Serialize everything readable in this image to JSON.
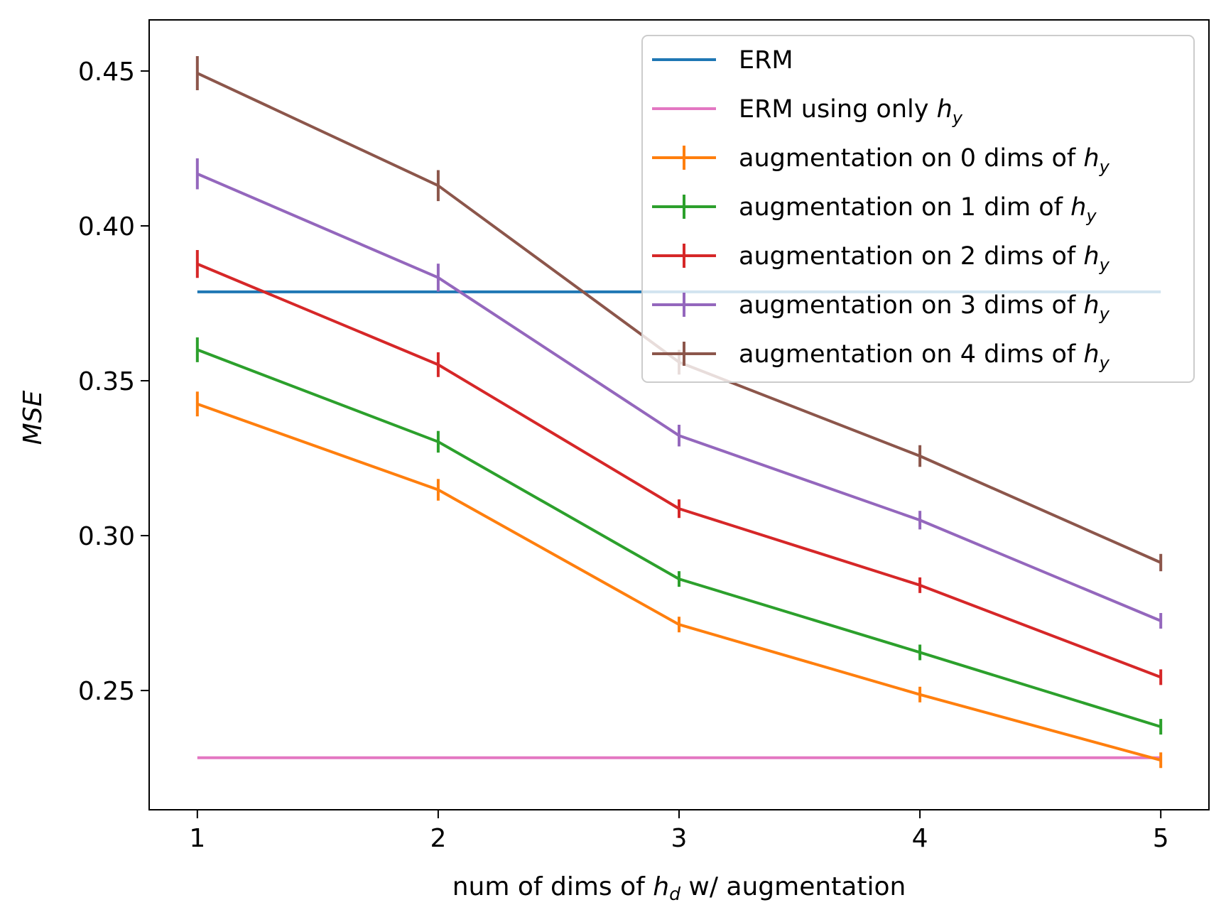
{
  "chart_data": {
    "type": "line",
    "x": [
      1,
      2,
      3,
      4,
      5
    ],
    "xlabel": {
      "prefix": "num of dims of ",
      "var": "h",
      "sub": "d",
      "suffix": " w/ augmentation"
    },
    "ylabel": "MSE",
    "xlim": [
      0.8,
      5.2
    ],
    "ylim": [
      0.2115,
      0.4665
    ],
    "xticks": [
      "1",
      "2",
      "3",
      "4",
      "5"
    ],
    "yticks": [
      "0.25",
      "0.30",
      "0.35",
      "0.40",
      "0.45"
    ],
    "ytick_values": [
      0.25,
      0.3,
      0.35,
      0.4,
      0.45
    ],
    "grid": false,
    "legend_position": "top-right",
    "series": [
      {
        "name": "ERM",
        "color": "#1f77b4",
        "errorbars": false,
        "values": [
          0.3787,
          0.3787,
          0.3787,
          0.3787,
          0.3787
        ]
      },
      {
        "name": "ERM using only ",
        "name_var": "h",
        "name_sub": "y",
        "color": "#e377c2",
        "errorbars": false,
        "values": [
          0.2283,
          0.2283,
          0.2283,
          0.2283,
          0.2283
        ]
      },
      {
        "name": "augmentation on 0 dims of ",
        "name_var": "h",
        "name_sub": "y",
        "color": "#ff7f0e",
        "errorbars": true,
        "values": [
          0.3425,
          0.3148,
          0.2713,
          0.2487,
          0.2275
        ],
        "errors": [
          0.004,
          0.0035,
          0.0025,
          0.0022,
          0.002
        ]
      },
      {
        "name": "augmentation on 1 dim of ",
        "name_var": "h",
        "name_sub": "y",
        "color": "#2ca02c",
        "errorbars": true,
        "values": [
          0.36,
          0.3303,
          0.286,
          0.2623,
          0.2383
        ],
        "errors": [
          0.004,
          0.0035,
          0.0025,
          0.0022,
          0.002
        ]
      },
      {
        "name": "augmentation on 2 dims of ",
        "name_var": "h",
        "name_sub": "y",
        "color": "#d62728",
        "errorbars": true,
        "values": [
          0.3877,
          0.3552,
          0.3087,
          0.284,
          0.2543
        ],
        "errors": [
          0.0045,
          0.004,
          0.003,
          0.0025,
          0.0022
        ]
      },
      {
        "name": "augmentation on 3 dims of ",
        "name_var": "h",
        "name_sub": "y",
        "color": "#9467bd",
        "errorbars": true,
        "values": [
          0.4168,
          0.3833,
          0.3323,
          0.305,
          0.2725
        ],
        "errors": [
          0.005,
          0.0045,
          0.0035,
          0.003,
          0.0025
        ]
      },
      {
        "name": "augmentation on 4 dims of ",
        "name_var": "h",
        "name_sub": "y",
        "color": "#8c564b",
        "errorbars": true,
        "values": [
          0.4493,
          0.413,
          0.356,
          0.3257,
          0.2913
        ],
        "errors": [
          0.0055,
          0.005,
          0.004,
          0.0035,
          0.0028
        ]
      }
    ]
  }
}
